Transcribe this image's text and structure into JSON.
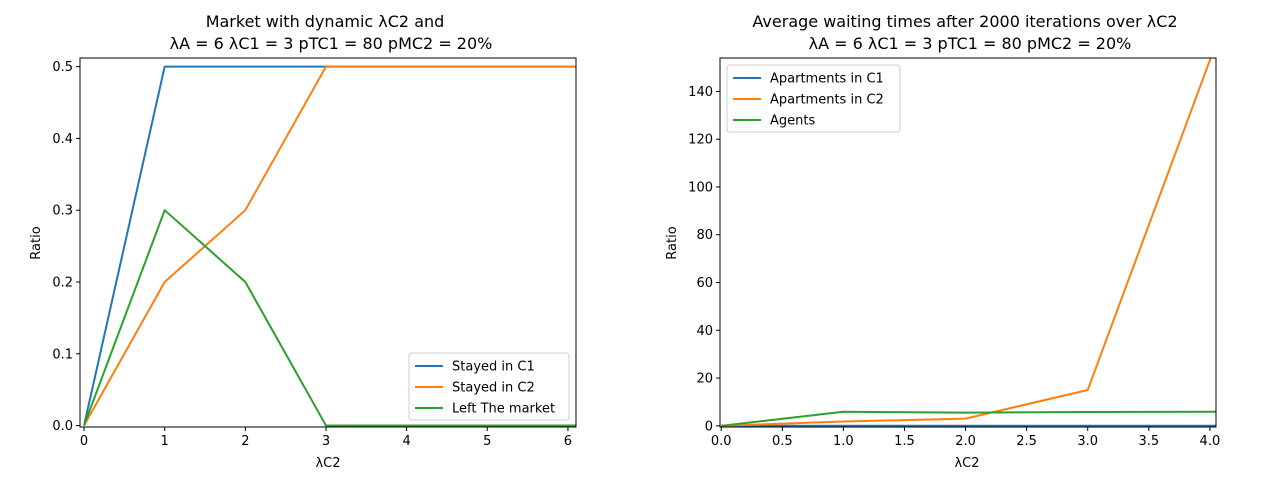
{
  "chart_data": [
    {
      "type": "line",
      "title_line1": "Market with dynamic λC2 and",
      "title_line2": "λA = 6 λC1 = 3 pTC1 = 80 pMC2 = 20%",
      "xlabel": "λC2",
      "ylabel": "Ratio",
      "xlim": [
        -0.05,
        6.1
      ],
      "ylim": [
        -0.002,
        0.512
      ],
      "xticks": [
        0,
        1,
        2,
        3,
        4,
        5,
        6
      ],
      "xtick_labels": [
        "0",
        "1",
        "2",
        "3",
        "4",
        "5",
        "6"
      ],
      "yticks": [
        0.0,
        0.1,
        0.2,
        0.3,
        0.4,
        0.5
      ],
      "ytick_labels": [
        "0.0",
        "0.1",
        "0.2",
        "0.3",
        "0.4",
        "0.5"
      ],
      "legend_position": "lower-right",
      "x": [
        0,
        1,
        2,
        3,
        4,
        5,
        6,
        6.1
      ],
      "series": [
        {
          "name": "Stayed in C1",
          "color": "#1f77b4",
          "values": [
            0,
            0.5,
            0.5,
            0.5,
            0.5,
            0.5,
            0.5,
            0.5
          ]
        },
        {
          "name": "Stayed in C2",
          "color": "#ff7f0e",
          "values": [
            0,
            0.2,
            0.3,
            0.5,
            0.5,
            0.5,
            0.5,
            0.5
          ]
        },
        {
          "name": "Left The market",
          "color": "#2ca02c",
          "values": [
            0,
            0.3,
            0.2,
            0,
            0,
            0,
            0,
            0
          ]
        }
      ]
    },
    {
      "type": "line",
      "title_line1": "Average waiting times after 2000 iterations over λC2",
      "title_line2": "λA = 6 λC1 = 3 pTC1 = 80 pMC2 = 20%",
      "xlabel": "λC2",
      "ylabel": "Ratio",
      "xlim": [
        -0.01,
        4.05
      ],
      "ylim": [
        -0.5,
        154
      ],
      "xticks": [
        0.0,
        0.5,
        1.0,
        1.5,
        2.0,
        2.5,
        3.0,
        3.5,
        4.0
      ],
      "xtick_labels": [
        "0.0",
        "0.5",
        "1.0",
        "1.5",
        "2.0",
        "2.5",
        "3.0",
        "3.5",
        "4.0"
      ],
      "yticks": [
        0,
        20,
        40,
        60,
        80,
        100,
        120,
        140
      ],
      "ytick_labels": [
        "0",
        "20",
        "40",
        "60",
        "80",
        "100",
        "120",
        "140"
      ],
      "legend_position": "upper-left",
      "series": [
        {
          "name": "Apartments in C1",
          "color": "#1f77b4",
          "x": [
            0,
            1,
            2,
            3,
            4.05
          ],
          "values": [
            0,
            0,
            0,
            0,
            0
          ]
        },
        {
          "name": "Apartments in C2",
          "color": "#ff7f0e",
          "x": [
            0,
            1,
            2,
            3,
            4.05
          ],
          "values": [
            0,
            1.8,
            3.0,
            15.0,
            160
          ]
        },
        {
          "name": "Agents",
          "color": "#2ca02c",
          "x": [
            0,
            1,
            2,
            3,
            4.05
          ],
          "values": [
            0,
            5.9,
            5.5,
            5.8,
            5.9
          ]
        }
      ]
    }
  ]
}
